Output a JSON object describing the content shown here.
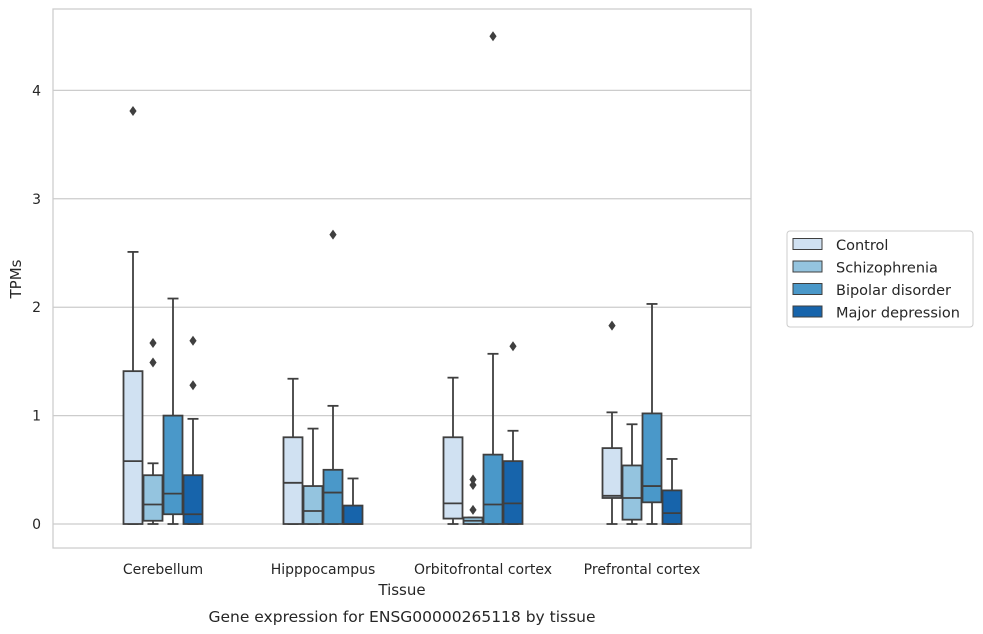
{
  "chart_data": {
    "type": "box",
    "title": "",
    "caption": "Gene expression for ENSG00000265118 by tissue",
    "xlabel": "Tissue",
    "ylabel": "TPMs",
    "ylim": [
      -0.22,
      4.72
    ],
    "yticks": [
      0,
      1,
      2,
      3,
      4
    ],
    "grid": "horizontal",
    "legend_position": "right",
    "categories": [
      "Cerebellum",
      "Hipppocampus",
      "Orbitofrontal cortex",
      "Prefrontal cortex"
    ],
    "series": [
      {
        "name": "Control",
        "color": "#d0e1f2",
        "boxes": [
          {
            "whisker_low": 0,
            "q1": 0,
            "median": 0.58,
            "q3": 1.41,
            "whisker_high": 2.51,
            "outliers": [
              3.81
            ]
          },
          {
            "whisker_low": 0,
            "q1": 0,
            "median": 0.38,
            "q3": 0.8,
            "whisker_high": 1.34,
            "outliers": []
          },
          {
            "whisker_low": 0,
            "q1": 0.05,
            "median": 0.19,
            "q3": 0.8,
            "whisker_high": 1.35,
            "outliers": []
          },
          {
            "whisker_low": 0,
            "q1": 0.24,
            "median": 0.26,
            "q3": 0.7,
            "whisker_high": 1.03,
            "outliers": [
              1.83
            ]
          }
        ]
      },
      {
        "name": "Schizophrenia",
        "color": "#94c4df",
        "boxes": [
          {
            "whisker_low": 0,
            "q1": 0.03,
            "median": 0.18,
            "q3": 0.45,
            "whisker_high": 0.56,
            "outliers": [
              1.49,
              1.67
            ]
          },
          {
            "whisker_low": 0,
            "q1": 0,
            "median": 0.12,
            "q3": 0.35,
            "whisker_high": 0.88,
            "outliers": []
          },
          {
            "whisker_low": 0,
            "q1": 0,
            "median": 0.03,
            "q3": 0.06,
            "whisker_high": 0.06,
            "outliers": [
              0.13,
              0.36,
              0.41
            ]
          },
          {
            "whisker_low": 0,
            "q1": 0.04,
            "median": 0.24,
            "q3": 0.54,
            "whisker_high": 0.92,
            "outliers": []
          }
        ]
      },
      {
        "name": "Bipolar disorder",
        "color": "#4a98c9",
        "boxes": [
          {
            "whisker_low": 0,
            "q1": 0.09,
            "median": 0.28,
            "q3": 1.0,
            "whisker_high": 2.08,
            "outliers": []
          },
          {
            "whisker_low": 0,
            "q1": 0,
            "median": 0.29,
            "q3": 0.5,
            "whisker_high": 1.09,
            "outliers": [
              2.67
            ]
          },
          {
            "whisker_low": 0,
            "q1": 0,
            "median": 0.18,
            "q3": 0.64,
            "whisker_high": 1.57,
            "outliers": [
              4.5
            ]
          },
          {
            "whisker_low": 0,
            "q1": 0.2,
            "median": 0.35,
            "q3": 1.02,
            "whisker_high": 2.03,
            "outliers": []
          }
        ]
      },
      {
        "name": "Major depression",
        "color": "#1764ab",
        "boxes": [
          {
            "whisker_low": 0,
            "q1": 0,
            "median": 0.09,
            "q3": 0.45,
            "whisker_high": 0.97,
            "outliers": [
              1.28,
              1.69
            ]
          },
          {
            "whisker_low": 0,
            "q1": 0,
            "median": 0,
            "q3": 0.17,
            "whisker_high": 0.42,
            "outliers": []
          },
          {
            "whisker_low": 0,
            "q1": 0,
            "median": 0.19,
            "q3": 0.58,
            "whisker_high": 0.86,
            "outliers": [
              1.64
            ]
          },
          {
            "whisker_low": 0,
            "q1": 0,
            "median": 0.1,
            "q3": 0.31,
            "whisker_high": 0.6,
            "outliers": []
          }
        ]
      }
    ]
  }
}
